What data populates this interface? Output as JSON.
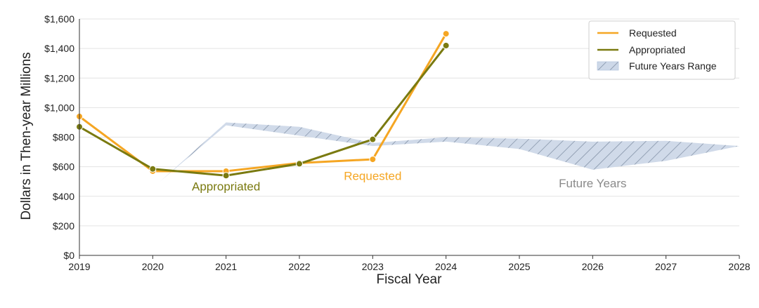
{
  "chart_data": {
    "type": "line",
    "xlabel": "Fiscal Year",
    "ylabel": "Dollars in Then-year Millions",
    "xlim": [
      2019,
      2028
    ],
    "ylim": [
      0,
      1600
    ],
    "x_ticks": [
      "2019",
      "2020",
      "2021",
      "2022",
      "2023",
      "2024",
      "2025",
      "2026",
      "2027",
      "2028"
    ],
    "y_ticks": [
      "$0",
      "$200",
      "$400",
      "$600",
      "$800",
      "$1,000",
      "$1,200",
      "$1,400",
      "$1,600"
    ],
    "y_tick_values": [
      0,
      200,
      400,
      600,
      800,
      1000,
      1200,
      1400,
      1600
    ],
    "grid": "horizontal",
    "legend_position": "top-right",
    "legend": [
      "Requested",
      "Appropriated",
      "Future Years Range"
    ],
    "series": [
      {
        "name": "Requested",
        "color": "#f5a623",
        "x": [
          2019,
          2020,
          2021,
          2022,
          2023,
          2024
        ],
        "values": [
          940,
          570,
          570,
          625,
          650,
          1500
        ]
      },
      {
        "name": "Appropriated",
        "color": "#7a7a10",
        "x": [
          2019,
          2020,
          2021,
          2022,
          2023,
          2024
        ],
        "values": [
          870,
          585,
          540,
          620,
          785,
          1420
        ]
      }
    ],
    "future_range": {
      "name": "Future Years Range",
      "color": "#b8c8e0",
      "x": [
        2020.1,
        2021,
        2022,
        2023,
        2024,
        2025,
        2026,
        2027,
        2028
      ],
      "upper": [
        500,
        900,
        870,
        760,
        800,
        790,
        770,
        775,
        740
      ],
      "lower": [
        500,
        880,
        810,
        740,
        770,
        720,
        580,
        640,
        740
      ]
    },
    "annotations": [
      {
        "text": "Appropriated",
        "x": 2021,
        "y": 440,
        "color": "#7a7a10"
      },
      {
        "text": "Requested",
        "x": 2023,
        "y": 510,
        "color": "#f5a623"
      },
      {
        "text": "Future Years",
        "x": 2026,
        "y": 460,
        "color": "#8a8a8a"
      }
    ]
  }
}
